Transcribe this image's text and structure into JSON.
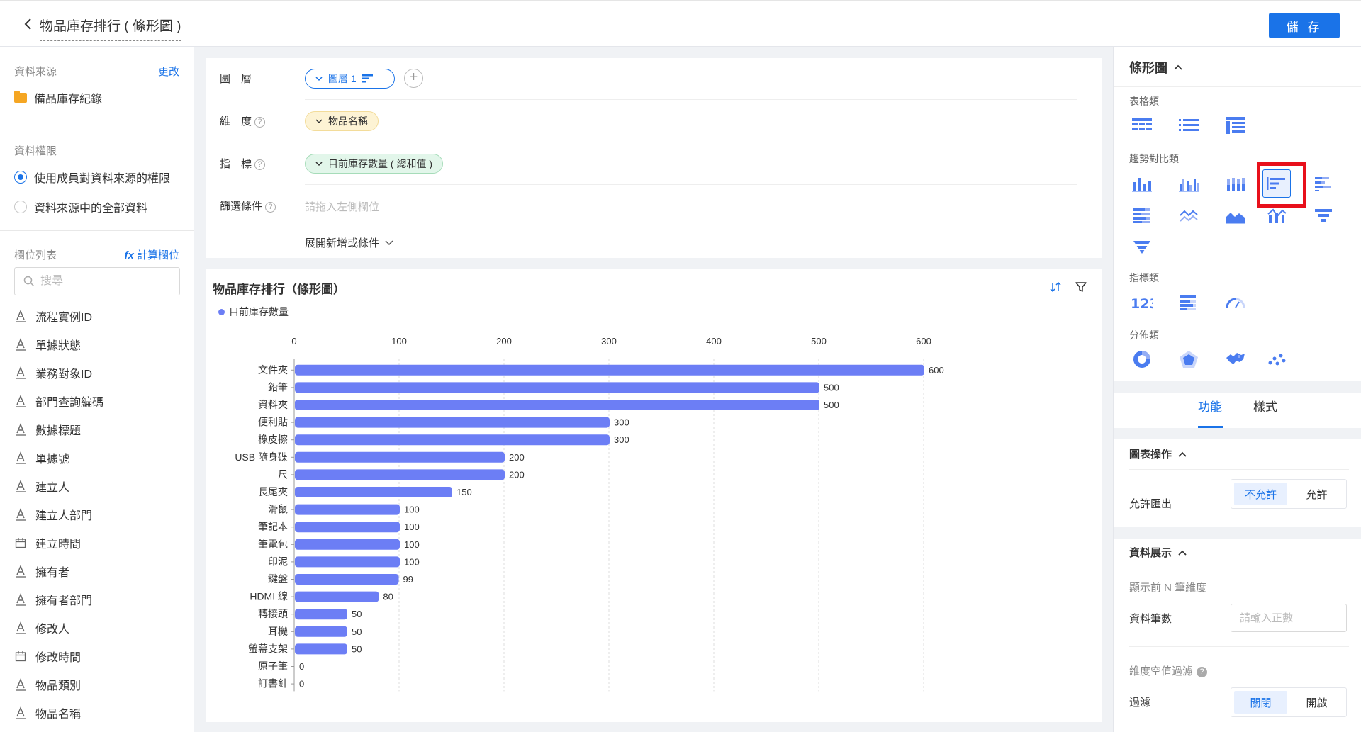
{
  "header": {
    "title": "物品庫存排行 ( 條形圖 )",
    "save_label": "儲 存"
  },
  "left_panel": {
    "source_title": "資料來源",
    "source_change": "更改",
    "source_name": "備品庫存紀錄",
    "perm_title": "資料權限",
    "perm_options": [
      "使用成員對資料來源的權限",
      "資料來源中的全部資料"
    ],
    "fields_title": "欄位列表",
    "calc_field": "計算欄位",
    "calc_prefix": "fx",
    "search_placeholder": "搜尋",
    "fields": [
      {
        "label": "流程實例ID",
        "icon": "text-field-icon"
      },
      {
        "label": "單據狀態",
        "icon": "text-field-icon"
      },
      {
        "label": "業務對象ID",
        "icon": "text-field-icon"
      },
      {
        "label": "部門查詢編碼",
        "icon": "text-field-icon"
      },
      {
        "label": "數據標題",
        "icon": "text-field-icon"
      },
      {
        "label": "單據號",
        "icon": "text-field-icon"
      },
      {
        "label": "建立人",
        "icon": "text-field-icon"
      },
      {
        "label": "建立人部門",
        "icon": "text-field-icon"
      },
      {
        "label": "建立時間",
        "icon": "date-field-icon"
      },
      {
        "label": "擁有者",
        "icon": "text-field-icon"
      },
      {
        "label": "擁有者部門",
        "icon": "text-field-icon"
      },
      {
        "label": "修改人",
        "icon": "text-field-icon"
      },
      {
        "label": "修改時間",
        "icon": "date-field-icon"
      },
      {
        "label": "物品類別",
        "icon": "text-field-icon"
      },
      {
        "label": "物品名稱",
        "icon": "text-field-icon"
      }
    ]
  },
  "config": {
    "layer_label": "圖　層",
    "layer_pill": "圖層 1",
    "dimension_label": "維　度",
    "dimension_pill": "物品名稱",
    "metric_label": "指　標",
    "metric_pill": "目前庫存數量 ( 總和值 )",
    "filter_label": "篩選條件",
    "filter_placeholder": "請拖入左側欄位",
    "expand_label": "展開新增或條件"
  },
  "chart_data": {
    "type": "bar",
    "orientation": "horizontal",
    "title": "物品庫存排行（條形圖）",
    "categories": [
      "文件夾",
      "鉛筆",
      "資料夾",
      "便利貼",
      "橡皮擦",
      "USB 隨身碟",
      "尺",
      "長尾夾",
      "滑鼠",
      "筆記本",
      "筆電包",
      "印泥",
      "鍵盤",
      "HDMI 線",
      "轉接頭",
      "耳機",
      "螢幕支架",
      "原子筆",
      "訂書針"
    ],
    "series": [
      {
        "name": "目前庫存數量",
        "values": [
          600,
          500,
          500,
          300,
          300,
          200,
          200,
          150,
          100,
          100,
          100,
          100,
          99,
          80,
          50,
          50,
          50,
          0,
          0
        ],
        "color": "#6c7ef5"
      }
    ],
    "xlim": [
      0,
      600
    ],
    "x_ticks": [
      0,
      100,
      200,
      300,
      400,
      500,
      600
    ],
    "x_axis_position": "top",
    "grid": true,
    "legend_position": "top-left",
    "data_labels": true
  },
  "right_panel": {
    "chart_type_title": "條形圖",
    "cat_table": "表格類",
    "cat_trend": "趨勢對比類",
    "cat_metric": "指標類",
    "cat_dist": "分佈類",
    "selected_chart_type": "bar-horizontal",
    "tab_function": "功能",
    "tab_style": "樣式",
    "chart_ops_title": "圖表操作",
    "allow_export_label": "允許匯出",
    "export_options": [
      "不允許",
      "允許"
    ],
    "export_selected": "不允許",
    "data_display_title": "資料展示",
    "topn_label": "顯示前 N 筆維度",
    "record_count_label": "資料筆數",
    "record_count_placeholder": "請輸入正數",
    "null_filter_label": "維度空值過濾",
    "filter_label": "過濾",
    "filter_options": [
      "關閉",
      "開啟"
    ],
    "filter_selected": "關閉"
  },
  "colors": {
    "accent": "#1a73e8",
    "bar": "#6c7ef5",
    "highlight_box": "#e8101b"
  }
}
